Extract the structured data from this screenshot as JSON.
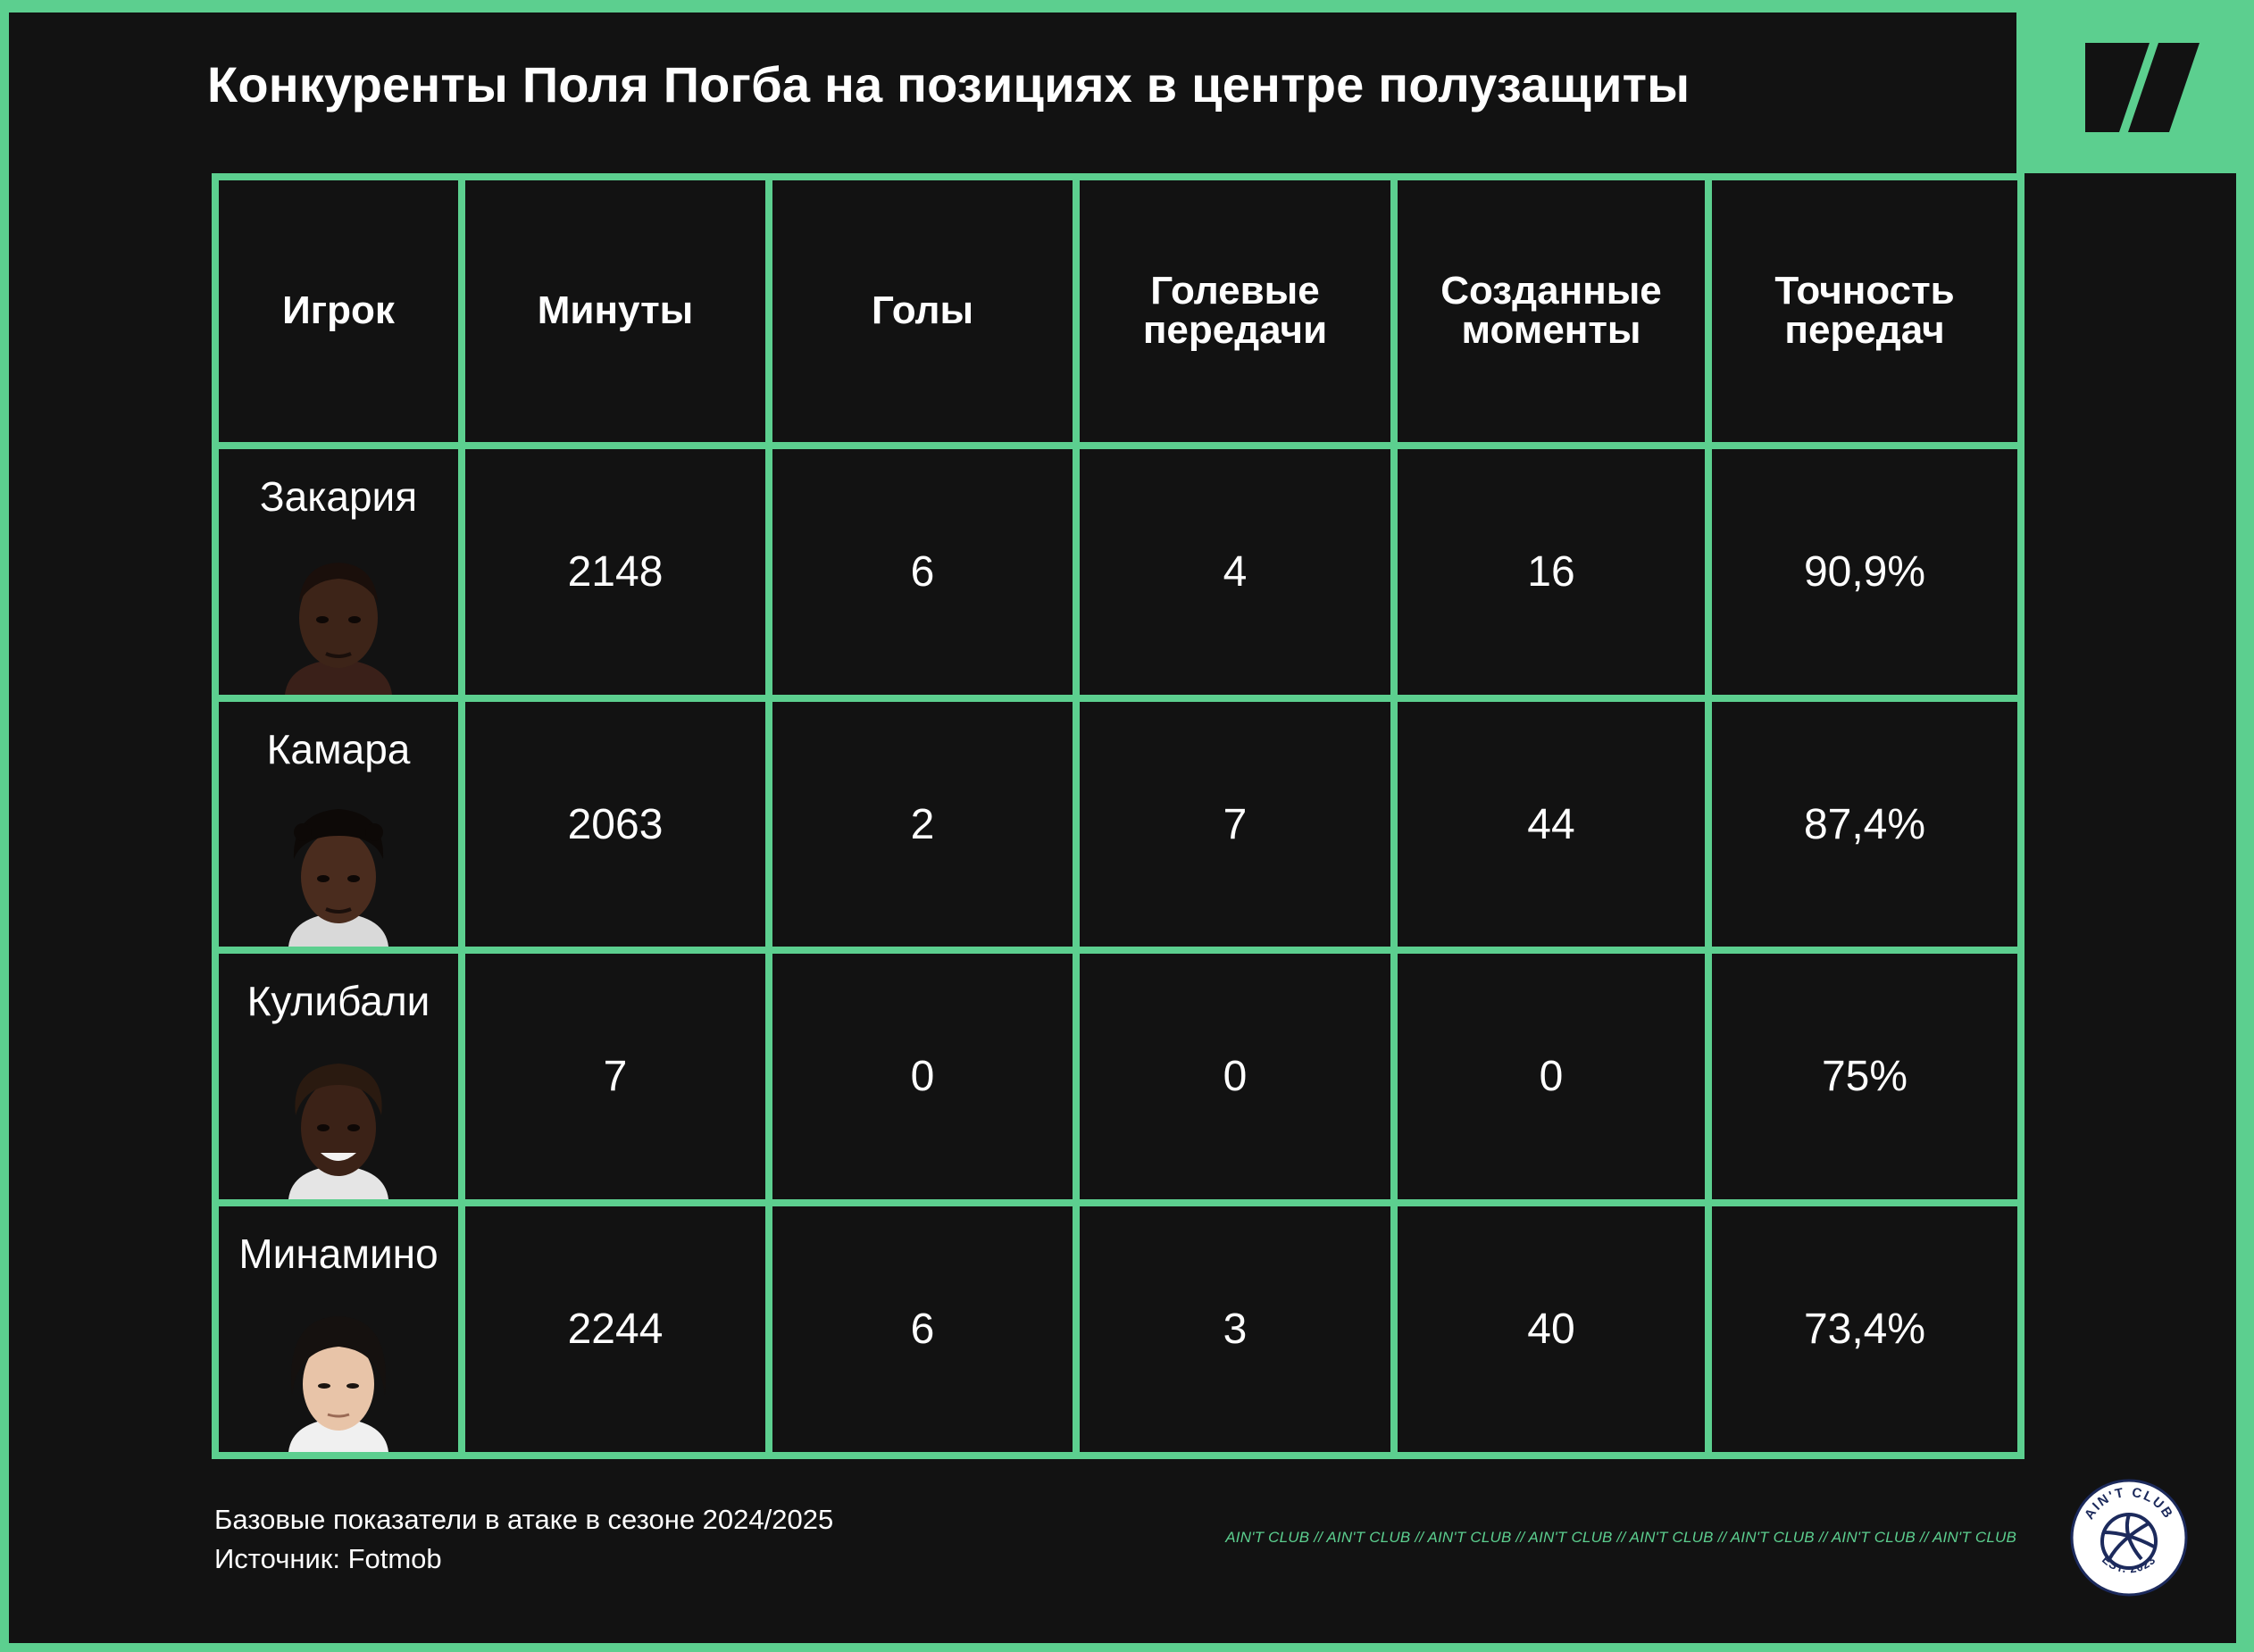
{
  "title": "Конкуренты Поля Погба на позициях в центре полузащиты",
  "colors": {
    "accent": "#5ccf8f",
    "background": "#121212",
    "text": "#ffffff"
  },
  "brand_logo": "sports-ru-logo-icon",
  "chart_data": {
    "type": "table",
    "title": "Конкуренты Поля Погба на позициях в центре полузащиты",
    "headers": [
      "Игрок",
      "Минуты",
      "Голы",
      "Голевые передачи",
      "Созданные моменты",
      "Точность передач"
    ],
    "rows": [
      {
        "name": "Закария",
        "minutes": "2148",
        "goals": "6",
        "assists": "4",
        "chances": "16",
        "pass_accuracy": "90,9%"
      },
      {
        "name": "Камара",
        "minutes": "2063",
        "goals": "2",
        "assists": "7",
        "chances": "44",
        "pass_accuracy": "87,4%"
      },
      {
        "name": "Кулибали",
        "minutes": "7",
        "goals": "0",
        "assists": "0",
        "chances": "0",
        "pass_accuracy": "75%"
      },
      {
        "name": "Минамино",
        "minutes": "2244",
        "goals": "6",
        "assists": "3",
        "chances": "40",
        "pass_accuracy": "73,4%"
      }
    ]
  },
  "footer": {
    "note": "Базовые показатели в атаке в сезоне 2024/2025",
    "source": "Источник: Fotmob",
    "watermark": "AIN'T CLUB // AIN'T CLUB // AIN'T CLUB // AIN'T CLUB // AIN'T CLUB // AIN'T CLUB // AIN'T CLUB // AIN'T CLUB",
    "badge_top": "AIN'T CLUB",
    "badge_bottom": "EST. 2023"
  }
}
